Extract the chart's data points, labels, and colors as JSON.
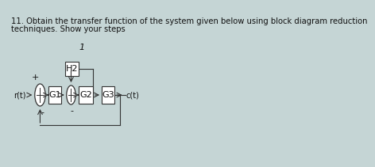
{
  "title_line1": "11. Obtain the transfer function of the system given below using block diagram reduction",
  "title_line2": "techniques. Show your steps",
  "title_fontsize": 7.2,
  "bg_color": "#c5d5d5",
  "line_color": "#333333",
  "box_fill": "#ffffff",
  "box_edge": "#333333",
  "text_color": "#111111",
  "font_size_labels": 7.0,
  "font_size_blocks": 8.0,
  "r_label": "r(t)",
  "c_label": "c(t)",
  "g1_label": "G1",
  "g2_label": "G2",
  "g3_label": "G3",
  "h2_label": "H2",
  "unit_label": "1",
  "plus_label": "+",
  "minus_label": "-"
}
